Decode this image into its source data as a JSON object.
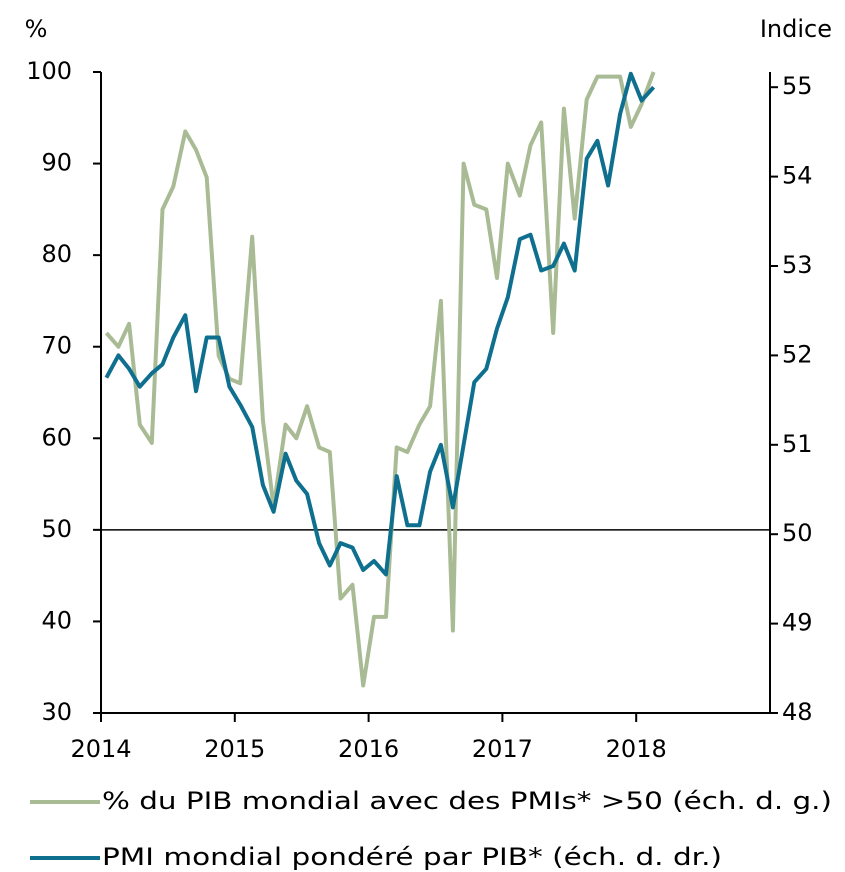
{
  "chart_data": {
    "type": "line",
    "y_label": "%",
    "y2_label": "Indice",
    "xlim": [
      2014,
      2019
    ],
    "xticks": [
      2014,
      2015,
      2016,
      2017,
      2018
    ],
    "ylim": [
      30,
      100
    ],
    "yticks": [
      30,
      40,
      50,
      60,
      70,
      80,
      90,
      100
    ],
    "y2lim": [
      48,
      55.17
    ],
    "y2ticks": [
      48,
      49,
      50,
      51,
      52,
      53,
      54,
      55
    ],
    "hline": 50,
    "grid": false,
    "x": [
      2014.04,
      2014.13,
      2014.21,
      2014.29,
      2014.38,
      2014.46,
      2014.54,
      2014.63,
      2014.71,
      2014.79,
      2014.88,
      2014.96,
      2015.04,
      2015.13,
      2015.21,
      2015.29,
      2015.38,
      2015.46,
      2015.54,
      2015.63,
      2015.71,
      2015.79,
      2015.88,
      2015.96,
      2016.04,
      2016.13,
      2016.21,
      2016.29,
      2016.38,
      2016.46,
      2016.54,
      2016.63,
      2016.71,
      2016.79,
      2016.88,
      2016.96,
      2017.04,
      2017.13,
      2017.21,
      2017.29,
      2017.38,
      2017.46,
      2017.54,
      2017.63,
      2017.71,
      2017.79,
      2017.88,
      2017.96,
      2018.04,
      2018.13
    ],
    "series": [
      {
        "name": "% du PIB mondial avec des PMIs* >50 (éch. d. g.)",
        "color": "#a9bb95",
        "values": [
          71.5,
          70,
          72.5,
          61.5,
          59.5,
          85,
          87.5,
          93.5,
          91.5,
          88.5,
          69,
          66.5,
          66,
          82,
          62,
          52.5,
          61.5,
          60,
          63.5,
          59,
          58.5,
          42.5,
          44,
          33,
          40.5,
          40.5,
          59,
          58.5,
          61.5,
          63.5,
          75,
          39,
          90,
          85.5,
          85,
          77.5,
          90,
          86.5,
          92,
          94.5,
          71.5,
          96,
          84,
          97,
          99.5,
          99.5,
          99.5,
          94,
          96.5,
          100
        ]
      },
      {
        "name": "PMI mondial pondéré par PIB* (éch. d. dr.)",
        "color": "#0f6f8e",
        "axis": "y2",
        "values": [
          51.75,
          52.0,
          51.85,
          51.65,
          51.8,
          51.9,
          52.2,
          52.45,
          51.6,
          52.2,
          52.2,
          51.65,
          51.45,
          51.2,
          50.55,
          50.25,
          50.9,
          50.6,
          50.45,
          49.9,
          49.65,
          49.9,
          49.85,
          49.6,
          49.7,
          49.55,
          50.65,
          50.1,
          50.1,
          50.7,
          51.0,
          50.3,
          51.0,
          51.7,
          51.85,
          52.3,
          52.65,
          53.3,
          53.35,
          52.95,
          53.0,
          53.25,
          52.95,
          54.2,
          54.4,
          53.9,
          54.7,
          55.15,
          54.85,
          55.0
        ]
      }
    ]
  }
}
